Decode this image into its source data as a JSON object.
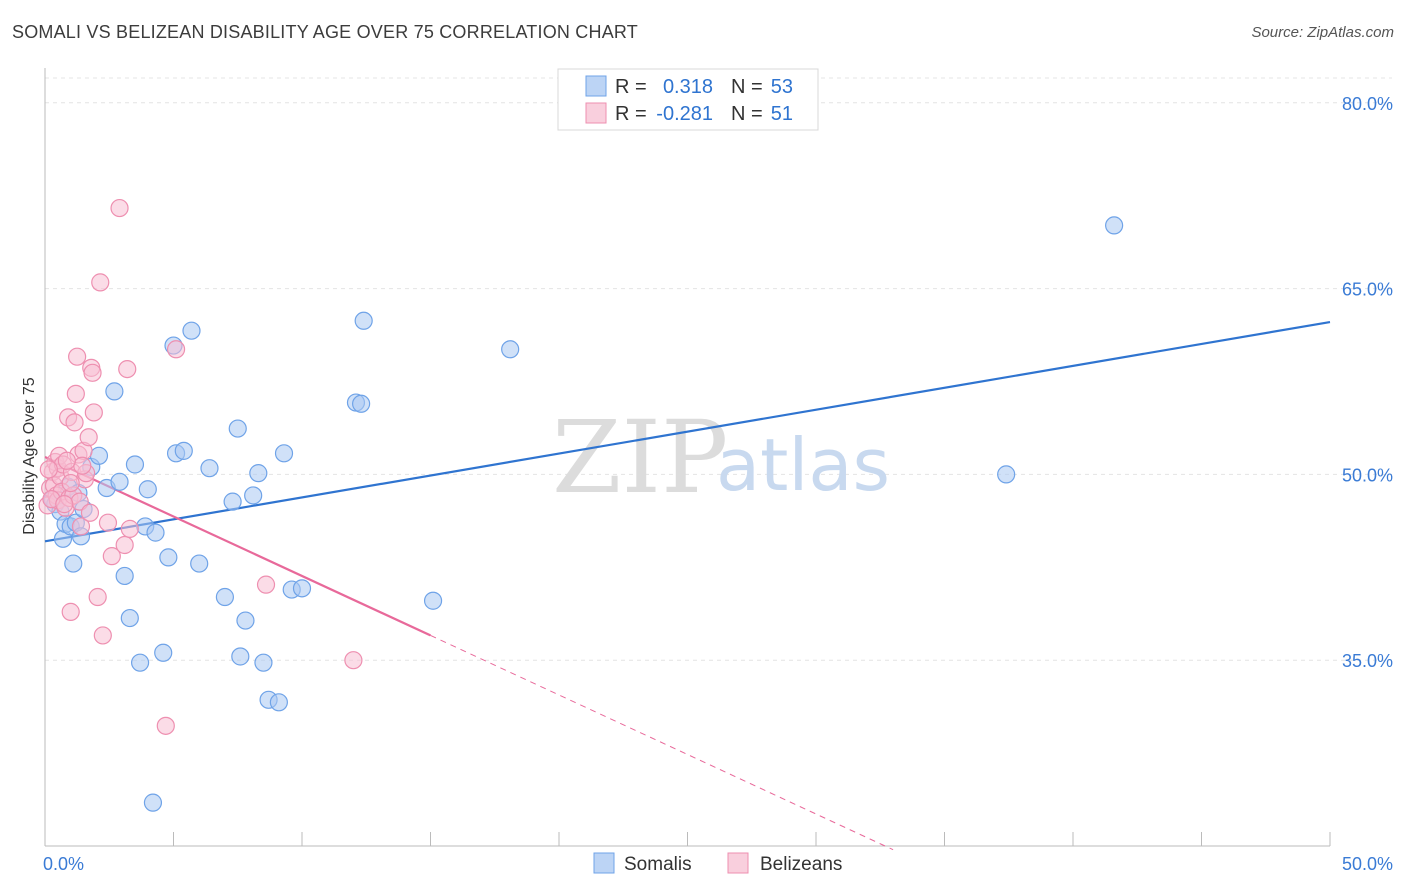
{
  "title": "SOMALI VS BELIZEAN DISABILITY AGE OVER 75 CORRELATION CHART",
  "source": "Source: ZipAtlas.com",
  "chart_data": {
    "type": "scatter",
    "title": "SOMALI VS BELIZEAN DISABILITY AGE OVER 75 CORRELATION CHART",
    "xlabel": "",
    "ylabel": "Disability Age Over 75",
    "xlim": [
      0,
      50
    ],
    "ylim": [
      20,
      82
    ],
    "x_ticks": [
      0,
      5,
      10,
      15,
      20,
      25,
      30,
      35,
      40,
      45,
      50
    ],
    "x_tick_labels": {
      "0": "0.0%",
      "50": "50.0%"
    },
    "y_ticks": [
      35,
      50,
      65,
      80
    ],
    "y_tick_labels": [
      "35.0%",
      "50.0%",
      "65.0%",
      "80.0%"
    ],
    "grid": true,
    "legend_position": "top-center",
    "watermark": {
      "zip": "ZIP",
      "atlas": "atlas"
    },
    "stats": [
      {
        "name": "Somalis",
        "r_label": "R =",
        "r": "0.318",
        "n_label": "N =",
        "n": "53"
      },
      {
        "name": "Belizeans",
        "r_label": "R =",
        "r": "-0.281",
        "n_label": "N =",
        "n": "51"
      }
    ],
    "series": [
      {
        "name": "Somalis",
        "color": "#6fa3e8",
        "fill": "#a9c8f2",
        "trend": {
          "x1": 0,
          "y1": 44.6,
          "x2": 50,
          "y2": 62.3,
          "color": "#2f74d0"
        },
        "points": [
          [
            0.3,
            48.0
          ],
          [
            0.4,
            47.6
          ],
          [
            0.6,
            47.0
          ],
          [
            0.7,
            44.8
          ],
          [
            0.8,
            46.0
          ],
          [
            0.9,
            49.0
          ],
          [
            1.0,
            45.8
          ],
          [
            1.1,
            42.8
          ],
          [
            1.2,
            46.1
          ],
          [
            1.4,
            45.0
          ],
          [
            1.5,
            47.2
          ],
          [
            1.8,
            50.6
          ],
          [
            2.1,
            51.5
          ],
          [
            2.4,
            48.9
          ],
          [
            2.7,
            56.7
          ],
          [
            2.9,
            49.4
          ],
          [
            3.1,
            41.8
          ],
          [
            3.3,
            38.4
          ],
          [
            3.5,
            50.8
          ],
          [
            3.7,
            34.8
          ],
          [
            3.9,
            45.8
          ],
          [
            4.0,
            48.8
          ],
          [
            4.3,
            45.3
          ],
          [
            4.6,
            35.6
          ],
          [
            4.8,
            43.3
          ],
          [
            5.0,
            60.4
          ],
          [
            5.1,
            51.7
          ],
          [
            5.4,
            51.9
          ],
          [
            5.7,
            61.6
          ],
          [
            6.0,
            42.8
          ],
          [
            6.4,
            50.5
          ],
          [
            7.0,
            40.1
          ],
          [
            7.3,
            47.8
          ],
          [
            7.5,
            53.7
          ],
          [
            7.6,
            35.3
          ],
          [
            7.8,
            38.2
          ],
          [
            8.1,
            48.3
          ],
          [
            8.3,
            50.1
          ],
          [
            8.5,
            34.8
          ],
          [
            8.7,
            31.8
          ],
          [
            9.1,
            31.6
          ],
          [
            9.3,
            51.7
          ],
          [
            9.6,
            40.7
          ],
          [
            10.0,
            40.8
          ],
          [
            12.1,
            55.8
          ],
          [
            12.3,
            55.7
          ],
          [
            12.4,
            62.4
          ],
          [
            15.1,
            39.8
          ],
          [
            18.1,
            60.1
          ],
          [
            4.2,
            23.5
          ],
          [
            37.4,
            50.0
          ],
          [
            41.6,
            70.1
          ],
          [
            1.3,
            48.5
          ]
        ]
      },
      {
        "name": "Belizeans",
        "color": "#ee8fb0",
        "fill": "#f7c0d3",
        "trend": {
          "x1": 0,
          "y1": 51.4,
          "x2": 15,
          "y2": 37.0,
          "color": "#e8699a"
        },
        "trend_ext": {
          "x1": 15,
          "y1": 37.0,
          "x2": 33,
          "y2": 19.7
        },
        "points": [
          [
            0.1,
            47.5
          ],
          [
            0.2,
            48.9
          ],
          [
            0.3,
            50.2
          ],
          [
            0.35,
            49.1
          ],
          [
            0.4,
            51.0
          ],
          [
            0.45,
            48.3
          ],
          [
            0.5,
            47.9
          ],
          [
            0.5,
            50.5
          ],
          [
            0.55,
            51.5
          ],
          [
            0.6,
            49.8
          ],
          [
            0.65,
            48.6
          ],
          [
            0.7,
            50.8
          ],
          [
            0.8,
            47.3
          ],
          [
            0.9,
            54.6
          ],
          [
            0.95,
            48.1
          ],
          [
            1.0,
            38.9
          ],
          [
            1.05,
            50.2
          ],
          [
            1.1,
            48.3
          ],
          [
            1.15,
            54.2
          ],
          [
            1.2,
            56.5
          ],
          [
            1.25,
            59.5
          ],
          [
            1.3,
            51.6
          ],
          [
            1.35,
            47.8
          ],
          [
            1.4,
            45.8
          ],
          [
            1.5,
            51.9
          ],
          [
            1.55,
            49.6
          ],
          [
            1.6,
            50.1
          ],
          [
            1.7,
            53.0
          ],
          [
            1.75,
            46.9
          ],
          [
            1.8,
            58.6
          ],
          [
            1.85,
            58.2
          ],
          [
            1.9,
            55.0
          ],
          [
            2.05,
            40.1
          ],
          [
            2.15,
            65.5
          ],
          [
            2.25,
            37.0
          ],
          [
            2.45,
            46.1
          ],
          [
            2.6,
            43.4
          ],
          [
            2.9,
            71.5
          ],
          [
            3.1,
            44.3
          ],
          [
            3.2,
            58.5
          ],
          [
            3.3,
            45.6
          ],
          [
            4.7,
            29.7
          ],
          [
            5.1,
            60.1
          ],
          [
            8.6,
            41.1
          ],
          [
            12.0,
            35.0
          ],
          [
            0.25,
            48.0
          ],
          [
            0.75,
            47.6
          ],
          [
            1.45,
            50.7
          ],
          [
            0.15,
            50.4
          ],
          [
            0.85,
            51.1
          ],
          [
            1.0,
            49.3
          ]
        ]
      }
    ]
  }
}
